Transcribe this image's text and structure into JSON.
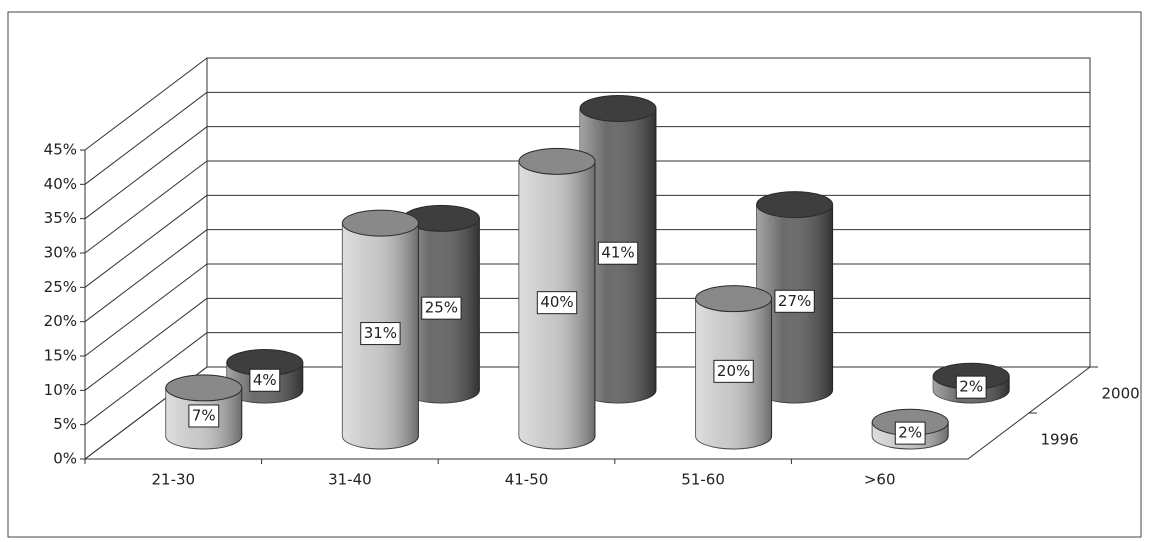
{
  "chart_data": {
    "type": "bar3d",
    "categories": [
      "21-30",
      "31-40",
      "41-50",
      "51-60",
      ">60"
    ],
    "series": [
      {
        "name": "1996",
        "color": "#c4c4c4",
        "values": [
          7,
          31,
          40,
          20,
          2
        ],
        "value_labels": [
          "7%",
          "31%",
          "40%",
          "20%",
          "2%"
        ]
      },
      {
        "name": "2000",
        "color": "#5a5a5a",
        "values": [
          4,
          25,
          41,
          27,
          2
        ],
        "value_labels": [
          "4%",
          "25%",
          "41%",
          "27%",
          "2%"
        ]
      }
    ],
    "ylim": [
      0,
      45
    ],
    "yticks": [
      {
        "value": 0,
        "label": "0%"
      },
      {
        "value": 5,
        "label": "5%"
      },
      {
        "value": 10,
        "label": "10%"
      },
      {
        "value": 15,
        "label": "15%"
      },
      {
        "value": 20,
        "label": "20%"
      },
      {
        "value": 25,
        "label": "25%"
      },
      {
        "value": 30,
        "label": "30%"
      },
      {
        "value": 35,
        "label": "35%"
      },
      {
        "value": 40,
        "label": "40%"
      },
      {
        "value": 45,
        "label": "45%"
      }
    ],
    "grid": true
  }
}
